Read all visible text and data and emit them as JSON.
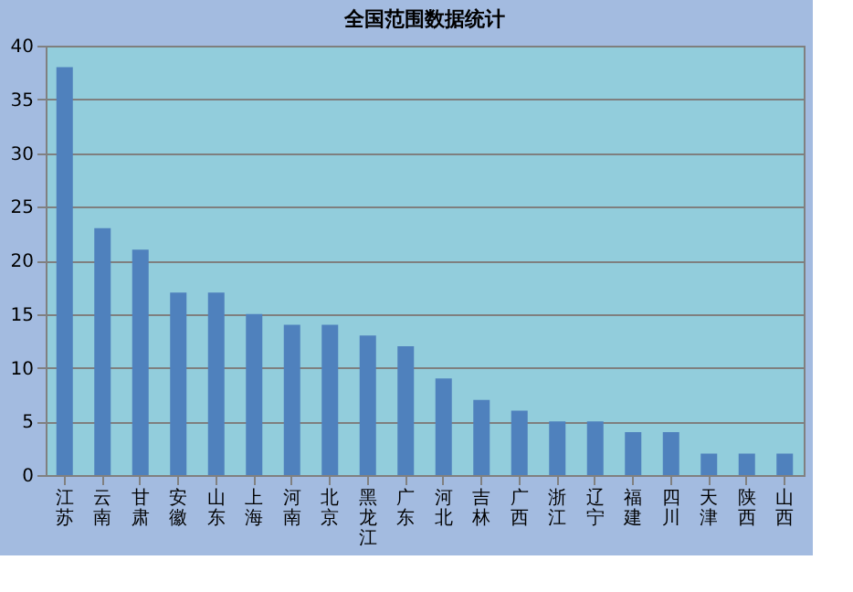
{
  "chart_data": {
    "type": "bar",
    "title": "全国范围数据统计",
    "categories": [
      "江苏",
      "云南",
      "甘肃",
      "安徽",
      "山东",
      "上海",
      "河南",
      "北京",
      "黑龙江",
      "广东",
      "河北",
      "吉林",
      "广西",
      "浙江",
      "辽宁",
      "福建",
      "四川",
      "天津",
      "陕西",
      "山西"
    ],
    "values": [
      38,
      23,
      21,
      17,
      17,
      15,
      14,
      14,
      13,
      12,
      9,
      7,
      6,
      5,
      5,
      4,
      4,
      2,
      2,
      2
    ],
    "color": "#4f81bd",
    "ylim": [
      0,
      40
    ],
    "yticks": [
      0,
      5,
      10,
      15,
      20,
      25,
      30,
      35,
      40
    ],
    "grid": "y"
  }
}
